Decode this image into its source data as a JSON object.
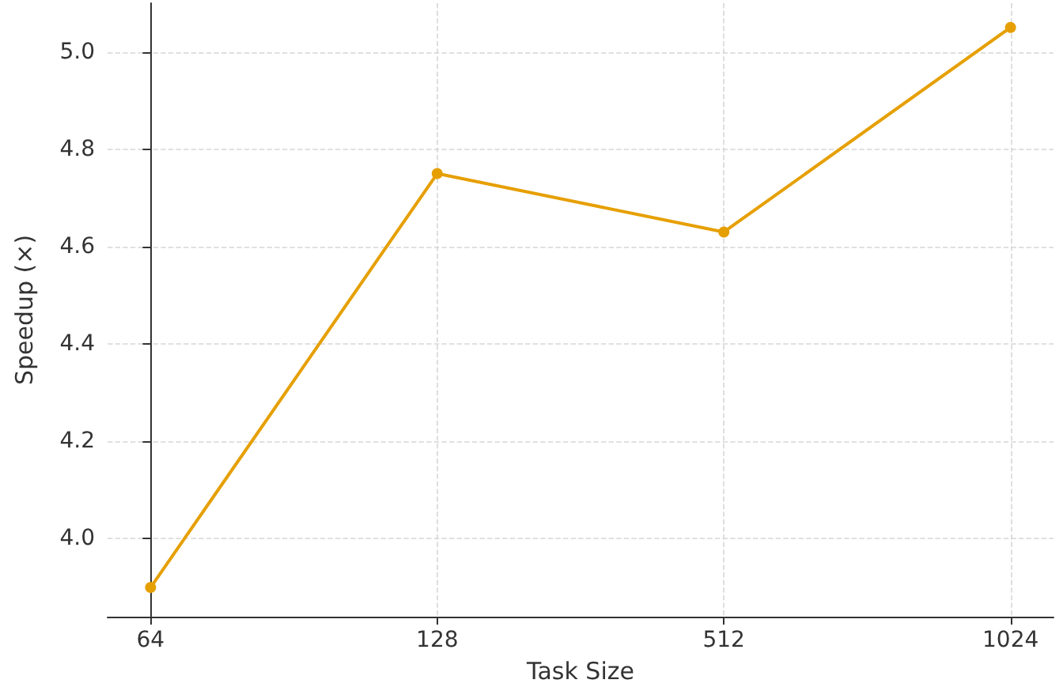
{
  "chart_data": {
    "type": "line",
    "xlabel": "Task Size",
    "ylabel": "Speedup (×)",
    "categories": [
      "64",
      "128",
      "512",
      "1024"
    ],
    "series": [
      {
        "color": "#e69f00",
        "values": [
          3.9,
          4.75,
          4.63,
          5.05
        ]
      }
    ],
    "ylim": [
      3.84,
      5.1
    ],
    "yticks": [
      {
        "value": 4.0,
        "label": "4.0"
      },
      {
        "value": 4.2,
        "label": "4.2"
      },
      {
        "value": 4.4,
        "label": "4.4"
      },
      {
        "value": 4.6,
        "label": "4.6"
      },
      {
        "value": 4.8,
        "label": "4.8"
      },
      {
        "value": 5.0,
        "label": "5.0"
      }
    ],
    "grid": true,
    "marker": "circle",
    "line_style": "solid"
  }
}
